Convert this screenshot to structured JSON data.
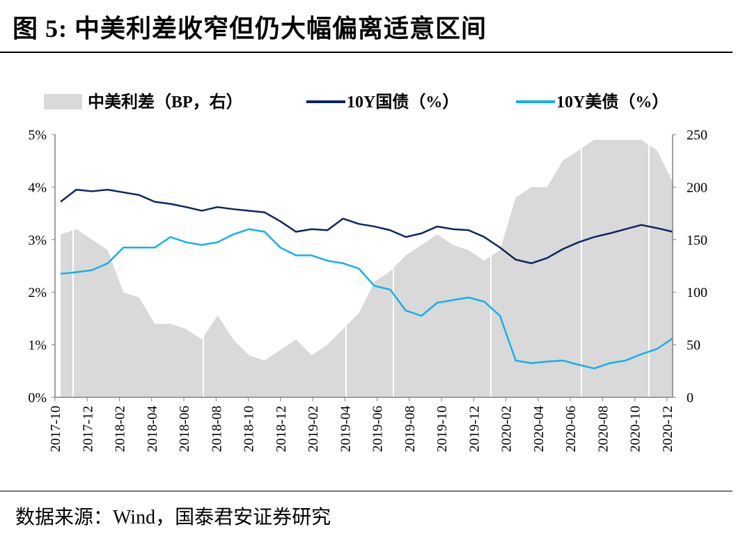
{
  "title": "图 5:  中美利差收窄但仍大幅偏离适意区间",
  "source": "数据来源：Wind，国泰君安证券研究",
  "chart_data": {
    "type": "line",
    "title": "图 5:  中美利差收窄但仍大幅偏离适意区间",
    "x_start": "2017-10",
    "x_step": "1 month",
    "xticks": [
      "2017-10",
      "2017-12",
      "2018-02",
      "2018-04",
      "2018-06",
      "2018-08",
      "2018-10",
      "2018-12",
      "2019-02",
      "2019-04",
      "2019-06",
      "2019-08",
      "2019-10",
      "2019-12",
      "2020-02",
      "2020-04",
      "2020-06",
      "2020-08",
      "2020-10",
      "2020-12"
    ],
    "yticks_left": [
      "0%",
      "1%",
      "2%",
      "3%",
      "4%",
      "5%"
    ],
    "yticks_right": [
      "0",
      "50",
      "100",
      "150",
      "200",
      "250"
    ],
    "ylim_left": [
      0,
      5
    ],
    "ylim_right": [
      0,
      250
    ],
    "legend": [
      "中美利差（BP，右）",
      "10Y国债（%）",
      "10Y美债（%）"
    ],
    "legend_position": "top",
    "colors": {
      "spread": "#d9d9d9",
      "cn": "#0c2461",
      "us": "#12b0ee"
    },
    "series": [
      {
        "name": "中美利差（BP，右）",
        "type": "area",
        "axis": "right",
        "values": [
          155,
          160,
          150,
          140,
          100,
          95,
          70,
          70,
          65,
          55,
          78,
          55,
          40,
          35,
          45,
          55,
          40,
          50,
          65,
          80,
          110,
          120,
          135,
          145,
          155,
          145,
          140,
          130,
          140,
          190,
          200,
          200,
          225,
          235,
          245,
          245,
          245,
          245,
          235,
          205
        ]
      },
      {
        "name": "10Y国债（%）",
        "type": "line",
        "axis": "left",
        "values": [
          3.72,
          3.95,
          3.92,
          3.95,
          3.9,
          3.85,
          3.72,
          3.68,
          3.62,
          3.55,
          3.62,
          3.58,
          3.55,
          3.52,
          3.35,
          3.15,
          3.2,
          3.18,
          3.4,
          3.3,
          3.25,
          3.18,
          3.05,
          3.12,
          3.25,
          3.2,
          3.18,
          3.05,
          2.85,
          2.62,
          2.55,
          2.65,
          2.82,
          2.95,
          3.05,
          3.12,
          3.2,
          3.28,
          3.22,
          3.15
        ]
      },
      {
        "name": "10Y美债（%）",
        "type": "line",
        "axis": "left",
        "values": [
          2.35,
          2.38,
          2.42,
          2.55,
          2.85,
          2.85,
          2.85,
          3.05,
          2.95,
          2.9,
          2.95,
          3.1,
          3.2,
          3.15,
          2.85,
          2.7,
          2.7,
          2.6,
          2.55,
          2.45,
          2.12,
          2.05,
          1.65,
          1.55,
          1.8,
          1.85,
          1.9,
          1.82,
          1.55,
          0.7,
          0.65,
          0.68,
          0.7,
          0.62,
          0.55,
          0.65,
          0.7,
          0.82,
          0.92,
          1.12
        ]
      }
    ]
  }
}
